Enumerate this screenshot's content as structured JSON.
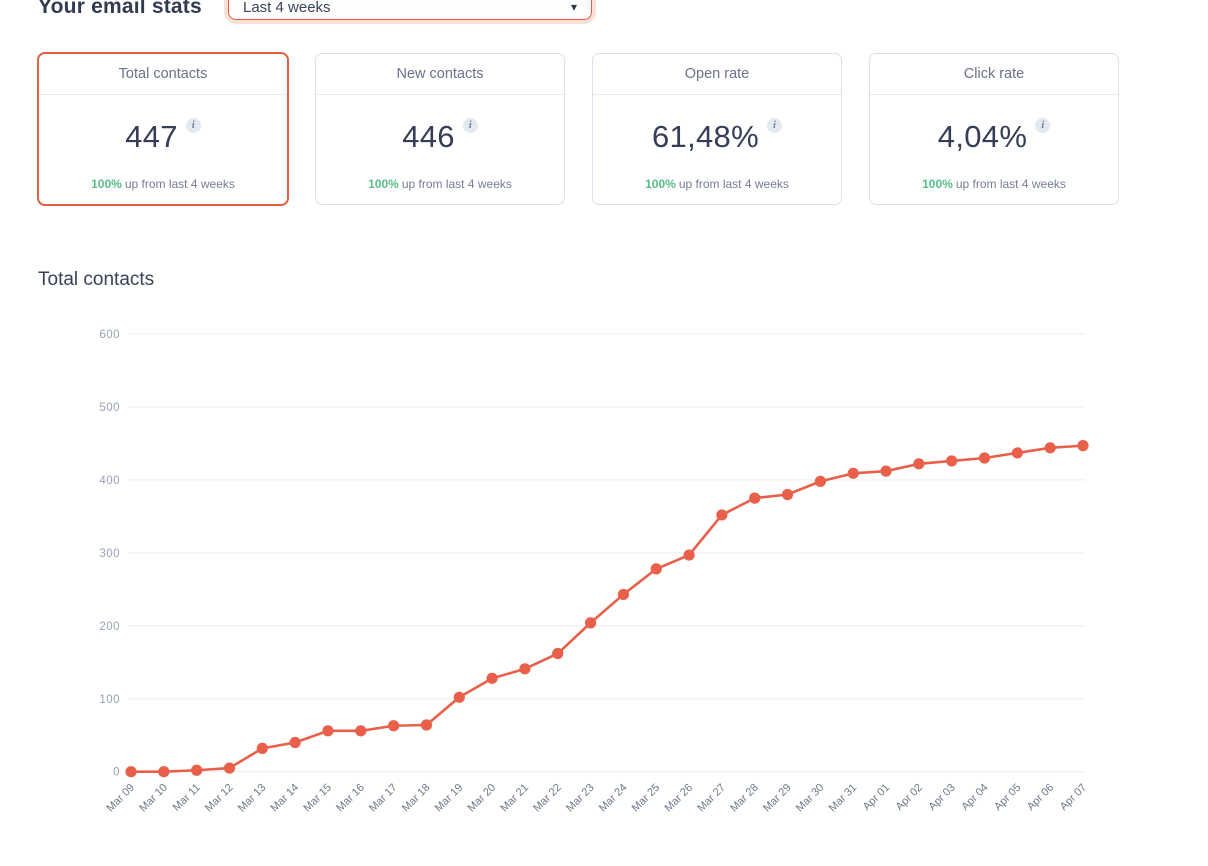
{
  "header": {
    "title": "Your email stats",
    "range_select": {
      "value": "Last 4 weeks"
    }
  },
  "icons": {
    "info": "i",
    "chevron_down": "▾"
  },
  "stat_cards": [
    {
      "title": "Total contacts",
      "value": "447",
      "change": "100%",
      "change_text": "up from last 4 weeks",
      "selected": true
    },
    {
      "title": "New contacts",
      "value": "446",
      "change": "100%",
      "change_text": "up from last 4 weeks",
      "selected": false
    },
    {
      "title": "Open rate",
      "value": "61,48%",
      "change": "100%",
      "change_text": "up from last 4 weeks",
      "selected": false
    },
    {
      "title": "Click rate",
      "value": "4,04%",
      "change": "100%",
      "change_text": "up from last 4 weeks",
      "selected": false
    }
  ],
  "chart_section": {
    "title": "Total contacts"
  },
  "colors": {
    "accent": "#e8604a",
    "grid": "#edf0f5",
    "y_label": "#99a2b4",
    "x_label": "#6f7889",
    "green": "#58bd8b"
  },
  "chart_data": {
    "type": "line",
    "title": "Total contacts",
    "x": [
      "Mar 09",
      "Mar 10",
      "Mar 11",
      "Mar 12",
      "Mar 13",
      "Mar 14",
      "Mar 15",
      "Mar 16",
      "Mar 17",
      "Mar 18",
      "Mar 19",
      "Mar 20",
      "Mar 21",
      "Mar 22",
      "Mar 23",
      "Mar 24",
      "Mar 25",
      "Mar 26",
      "Mar 27",
      "Mar 28",
      "Mar 29",
      "Mar 30",
      "Mar 31",
      "Apr 01",
      "Apr 02",
      "Apr 03",
      "Apr 04",
      "Apr 05",
      "Apr 06",
      "Apr 07"
    ],
    "series": [
      {
        "name": "Total contacts",
        "values": [
          0,
          0,
          2,
          5,
          32,
          40,
          56,
          56,
          63,
          64,
          102,
          128,
          141,
          162,
          204,
          243,
          278,
          297,
          352,
          375,
          380,
          398,
          409,
          412,
          422,
          426,
          430,
          437,
          444,
          447
        ]
      }
    ],
    "ylim": [
      0,
      600
    ],
    "yticks": [
      0,
      100,
      200,
      300,
      400,
      500,
      600
    ],
    "xlabel": "",
    "ylabel": "",
    "grid": true,
    "legend": "none",
    "marker": "circle"
  }
}
